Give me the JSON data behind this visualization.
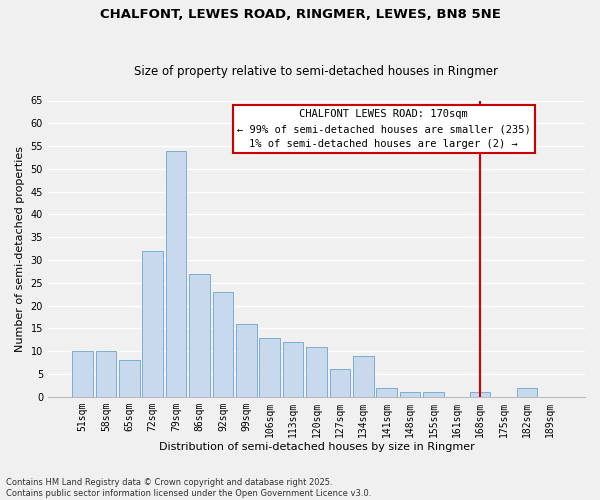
{
  "title": "CHALFONT, LEWES ROAD, RINGMER, LEWES, BN8 5NE",
  "subtitle": "Size of property relative to semi-detached houses in Ringmer",
  "xlabel": "Distribution of semi-detached houses by size in Ringmer",
  "ylabel": "Number of semi-detached properties",
  "bar_labels": [
    "51sqm",
    "58sqm",
    "65sqm",
    "72sqm",
    "79sqm",
    "86sqm",
    "92sqm",
    "99sqm",
    "106sqm",
    "113sqm",
    "120sqm",
    "127sqm",
    "134sqm",
    "141sqm",
    "148sqm",
    "155sqm",
    "161sqm",
    "168sqm",
    "175sqm",
    "182sqm",
    "189sqm"
  ],
  "bar_values": [
    10,
    10,
    8,
    32,
    54,
    27,
    23,
    16,
    13,
    12,
    11,
    6,
    9,
    2,
    1,
    1,
    0,
    1,
    0,
    2,
    0
  ],
  "bar_color": "#c8d9ee",
  "bar_edge_color": "#7aadd4",
  "background_color": "#f0f0f0",
  "plot_bg_color": "#f0f0f0",
  "grid_color": "#ffffff",
  "ylim": [
    0,
    65
  ],
  "yticks": [
    0,
    5,
    10,
    15,
    20,
    25,
    30,
    35,
    40,
    45,
    50,
    55,
    60,
    65
  ],
  "vline_x_index": 17,
  "vline_color": "#cc0000",
  "annotation_title": "CHALFONT LEWES ROAD: 170sqm",
  "annotation_line1": "← 99% of semi-detached houses are smaller (235)",
  "annotation_line2": "1% of semi-detached houses are larger (2) →",
  "annotation_box_facecolor": "#ffffff",
  "annotation_box_edgecolor": "#cc0000",
  "footnote1": "Contains HM Land Registry data © Crown copyright and database right 2025.",
  "footnote2": "Contains public sector information licensed under the Open Government Licence v3.0.",
  "title_fontsize": 9.5,
  "subtitle_fontsize": 8.5,
  "axis_label_fontsize": 8,
  "tick_fontsize": 7,
  "annotation_fontsize": 7.5,
  "footnote_fontsize": 6
}
